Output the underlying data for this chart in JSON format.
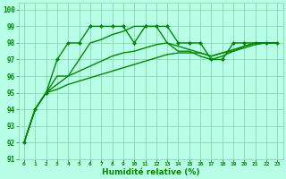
{
  "xlabel": "Humidité relative (%)",
  "bg_color": "#b8ffe8",
  "grid_color": "#88ccaa",
  "line_color": "#008800",
  "xlim": [
    -0.5,
    23.5
  ],
  "ylim": [
    91,
    100.4
  ],
  "yticks": [
    91,
    92,
    93,
    94,
    95,
    96,
    97,
    98,
    99,
    100
  ],
  "xticks": [
    0,
    1,
    2,
    3,
    4,
    5,
    6,
    7,
    8,
    9,
    10,
    11,
    12,
    13,
    14,
    15,
    16,
    17,
    18,
    19,
    20,
    21,
    22,
    23
  ],
  "series": [
    {
      "x": [
        0,
        1,
        2,
        3,
        4,
        5,
        6,
        7,
        8,
        9,
        10,
        11,
        12,
        13,
        14,
        15,
        16,
        17,
        18,
        19,
        20,
        21,
        22,
        23
      ],
      "y": [
        92,
        94,
        95,
        97,
        98,
        98,
        99,
        99,
        99,
        99,
        98,
        99,
        99,
        99,
        98,
        98,
        98,
        97,
        97,
        98,
        98,
        98,
        98,
        98
      ],
      "marker": "D",
      "markersize": 2.0,
      "linewidth": 1.0
    },
    {
      "x": [
        0,
        1,
        2,
        3,
        4,
        5,
        6,
        7,
        8,
        9,
        10,
        11,
        12,
        13,
        14,
        15,
        16,
        17,
        18,
        19,
        20,
        21,
        22,
        23
      ],
      "y": [
        92,
        94,
        95,
        96,
        96,
        97,
        98,
        98.2,
        98.5,
        98.7,
        99,
        99,
        99,
        98,
        97.5,
        97.5,
        97.2,
        97,
        97.2,
        97.5,
        97.8,
        98,
        98,
        98
      ],
      "marker": null,
      "markersize": 0,
      "linewidth": 1.0
    },
    {
      "x": [
        0,
        1,
        2,
        3,
        4,
        5,
        6,
        7,
        8,
        9,
        10,
        11,
        12,
        13,
        14,
        15,
        16,
        17,
        18,
        19,
        20,
        21,
        22,
        23
      ],
      "y": [
        92,
        94,
        95,
        95.5,
        96,
        96.3,
        96.6,
        96.9,
        97.2,
        97.4,
        97.5,
        97.7,
        97.9,
        98,
        97.8,
        97.6,
        97.4,
        97.2,
        97.4,
        97.6,
        97.8,
        98,
        98,
        98
      ],
      "marker": null,
      "markersize": 0,
      "linewidth": 1.0
    },
    {
      "x": [
        0,
        1,
        2,
        3,
        4,
        5,
        6,
        7,
        8,
        9,
        10,
        11,
        12,
        13,
        14,
        15,
        16,
        17,
        18,
        19,
        20,
        21,
        22,
        23
      ],
      "y": [
        92,
        94,
        95,
        95.2,
        95.5,
        95.7,
        95.9,
        96.1,
        96.3,
        96.5,
        96.7,
        96.9,
        97.1,
        97.3,
        97.4,
        97.4,
        97.4,
        97.2,
        97.4,
        97.5,
        97.7,
        97.9,
        98,
        98
      ],
      "marker": null,
      "markersize": 0,
      "linewidth": 1.0
    }
  ],
  "ylabel_fontsize": 5.5,
  "xlabel_fontsize": 6.5,
  "ytick_fontsize": 5.5,
  "xtick_fontsize": 4.5
}
